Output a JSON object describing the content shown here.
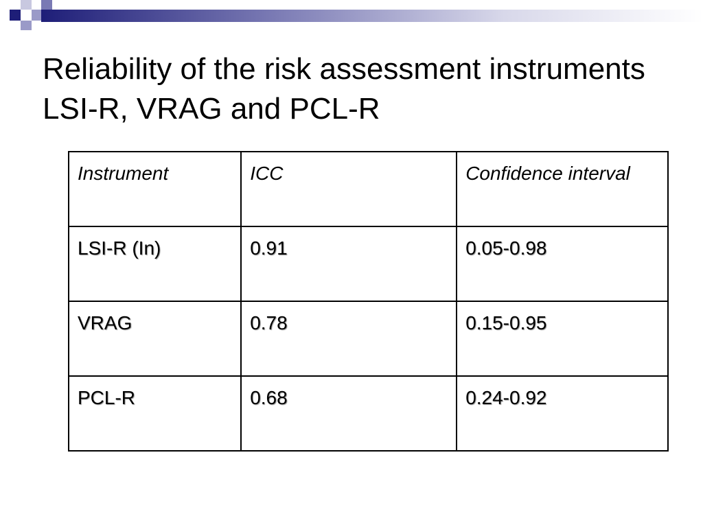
{
  "title": "Reliability of the risk assessment instruments LSI-R, VRAG and PCL-R",
  "table": {
    "headers": [
      "Instrument",
      "ICC",
      "Confidence interval"
    ],
    "rows": [
      [
        "LSI-R (In)",
        "0.91",
        "0.05-0.98"
      ],
      [
        "VRAG",
        "0.78",
        "0.15-0.95"
      ],
      [
        "PCL-R",
        "0.68",
        "0.24-0.92"
      ]
    ]
  },
  "colors": {
    "accent_dark": "#1e1e78",
    "accent_light": "#9a9ac8",
    "text": "#000000"
  }
}
